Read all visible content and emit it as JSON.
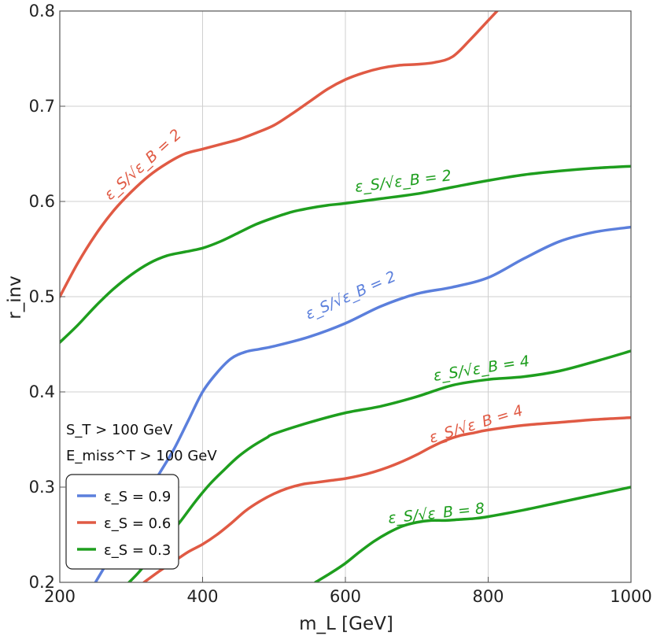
{
  "chart_data": {
    "type": "line",
    "xlabel": "m_L [GeV]",
    "ylabel": "r_inv",
    "xlim": [
      200,
      1000
    ],
    "ylim": [
      0.2,
      0.8
    ],
    "xticks": [
      "200",
      "400",
      "600",
      "800",
      "1000"
    ],
    "yticks": [
      "0.2",
      "0.3",
      "0.4",
      "0.5",
      "0.6",
      "0.7",
      "0.8"
    ],
    "grid": true,
    "cuts": [
      "S_T > 100 GeV",
      "E_miss^T > 100 GeV"
    ],
    "legend": {
      "position": "bottom-left",
      "entries": [
        {
          "label": "ε_S = 0.9",
          "color": "#5b7fdc"
        },
        {
          "label": "ε_S = 0.6",
          "color": "#e05a44"
        },
        {
          "label": "ε_S = 0.3",
          "color": "#1e9e1e"
        }
      ]
    },
    "series": [
      {
        "name": "ε_S = 0.9, ε_S/√ε_B = 2",
        "color": "#5b7fdc",
        "label": "ε_S/√ε_B = 2",
        "x": [
          250,
          270,
          300,
          320,
          340,
          360,
          380,
          400,
          420,
          440,
          460,
          480,
          500,
          550,
          600,
          650,
          700,
          750,
          800,
          850,
          900,
          950,
          1000
        ],
        "y": [
          0.2,
          0.225,
          0.26,
          0.29,
          0.315,
          0.34,
          0.37,
          0.4,
          0.42,
          0.435,
          0.442,
          0.445,
          0.448,
          0.458,
          0.472,
          0.49,
          0.503,
          0.51,
          0.52,
          0.54,
          0.558,
          0.568,
          0.573
        ]
      },
      {
        "name": "ε_S = 0.6, ε_S/√ε_B = 2",
        "color": "#e05a44",
        "label": "ε_S/√ε_B = 2",
        "x": [
          200,
          225,
          250,
          275,
          300,
          325,
          350,
          375,
          400,
          425,
          450,
          475,
          500,
          525,
          550,
          575,
          600,
          625,
          650,
          675,
          700,
          725,
          750,
          775,
          800,
          825,
          850
        ],
        "y": [
          0.5,
          0.535,
          0.565,
          0.59,
          0.61,
          0.627,
          0.64,
          0.65,
          0.655,
          0.66,
          0.665,
          0.672,
          0.68,
          0.692,
          0.705,
          0.718,
          0.728,
          0.735,
          0.74,
          0.743,
          0.744,
          0.746,
          0.752,
          0.77,
          0.79,
          0.81,
          0.83
        ]
      },
      {
        "name": "ε_S = 0.6, ε_S/√ε_B = 4",
        "color": "#e05a44",
        "label": "ε_S/√ε_B = 4",
        "x": [
          318,
          340,
          360,
          380,
          400,
          420,
          440,
          460,
          480,
          500,
          520,
          540,
          560,
          580,
          600,
          620,
          640,
          660,
          680,
          700,
          720,
          740,
          760,
          780,
          800,
          850,
          900,
          950,
          1000
        ],
        "y": [
          0.2,
          0.212,
          0.222,
          0.232,
          0.24,
          0.25,
          0.262,
          0.275,
          0.285,
          0.293,
          0.299,
          0.303,
          0.305,
          0.307,
          0.309,
          0.312,
          0.316,
          0.321,
          0.327,
          0.334,
          0.342,
          0.349,
          0.354,
          0.357,
          0.36,
          0.365,
          0.368,
          0.371,
          0.373
        ]
      },
      {
        "name": "ε_S = 0.3, ε_S/√ε_B = 2",
        "color": "#1e9e1e",
        "label": "ε_S/√ε_B = 2",
        "x": [
          200,
          225,
          250,
          275,
          300,
          325,
          350,
          375,
          400,
          425,
          450,
          475,
          500,
          525,
          550,
          575,
          600,
          650,
          700,
          750,
          800,
          850,
          900,
          950,
          1000
        ],
        "y": [
          0.452,
          0.47,
          0.49,
          0.508,
          0.523,
          0.535,
          0.543,
          0.547,
          0.551,
          0.558,
          0.567,
          0.576,
          0.583,
          0.589,
          0.593,
          0.596,
          0.598,
          0.603,
          0.608,
          0.615,
          0.622,
          0.628,
          0.632,
          0.635,
          0.637
        ]
      },
      {
        "name": "ε_S = 0.3, ε_S/√ε_B = 4",
        "color": "#1e9e1e",
        "label": "ε_S/√ε_B = 4",
        "x": [
          297,
          310,
          330,
          350,
          370,
          390,
          410,
          430,
          450,
          470,
          490,
          500,
          550,
          600,
          650,
          700,
          750,
          800,
          850,
          900,
          950,
          1000
        ],
        "y": [
          0.2,
          0.21,
          0.228,
          0.246,
          0.265,
          0.285,
          0.303,
          0.318,
          0.332,
          0.343,
          0.352,
          0.356,
          0.368,
          0.378,
          0.385,
          0.395,
          0.407,
          0.413,
          0.416,
          0.422,
          0.432,
          0.443
        ]
      },
      {
        "name": "ε_S = 0.3, ε_S/√ε_B = 8",
        "color": "#1e9e1e",
        "label": "ε_S/√ε_B = 8",
        "x": [
          558,
          580,
          600,
          620,
          640,
          660,
          680,
          700,
          720,
          740,
          760,
          780,
          800,
          850,
          900,
          950,
          1000
        ],
        "y": [
          0.2,
          0.21,
          0.22,
          0.232,
          0.243,
          0.252,
          0.259,
          0.263,
          0.265,
          0.265,
          0.266,
          0.267,
          0.269,
          0.276,
          0.284,
          0.292,
          0.3
        ]
      }
    ]
  }
}
